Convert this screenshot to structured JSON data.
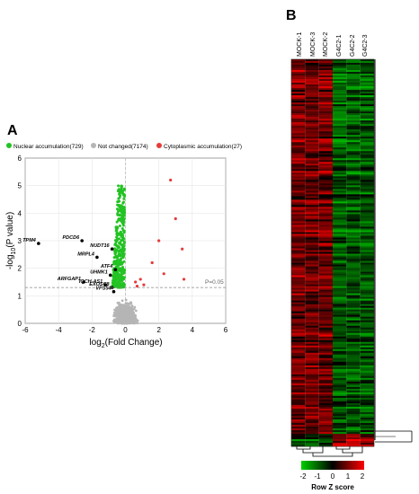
{
  "panelA": {
    "label": "A",
    "legend": [
      {
        "name": "Nuclear accumulation(729)",
        "color": "#22c322"
      },
      {
        "name": "Not changed(7174)",
        "color": "#b5b5b5"
      },
      {
        "name": "Cytoplasmic accumulation(27)",
        "color": "#e53b3b"
      }
    ],
    "xlabel_main": "log",
    "xlabel_sub": "2",
    "xlabel_rest": "(Fold Change)",
    "ylabel_main": "-log",
    "ylabel_sub": "10",
    "ylabel_rest": "(P value)",
    "threshold_label": "P=0.05"
  },
  "panelB": {
    "label": "B",
    "samples": [
      "MOCK-1",
      "MOCK-3",
      "MOCK-2",
      "G4C2-1",
      "G4C2-2",
      "G4C2-3"
    ],
    "colorbar_ticks": [
      "-2",
      "-1",
      "0",
      "1",
      "2"
    ],
    "colorbar_title": "Row Z score"
  },
  "chart_data": [
    {
      "type": "scatter",
      "title": "",
      "xlabel": "log2(Fold Change)",
      "ylabel": "-log10(P value)",
      "xlim": [
        -6,
        6
      ],
      "ylim": [
        0,
        6
      ],
      "xticks": [
        -6,
        -4,
        -2,
        0,
        2,
        4,
        6
      ],
      "yticks": [
        0,
        1,
        2,
        3,
        4,
        5,
        6
      ],
      "grid": true,
      "legend_position": "top",
      "threshold": {
        "y": 1.3,
        "label": "P=0.05"
      },
      "series": [
        {
          "name": "Nuclear accumulation(729)",
          "count": 729,
          "color": "#22c322"
        },
        {
          "name": "Not changed(7174)",
          "count": 7174,
          "color": "#b5b5b5"
        },
        {
          "name": "Cytoplasmic accumulation(27)",
          "count": 27,
          "color": "#e53b3b",
          "points": [
            [
              2.7,
              5.2
            ],
            [
              3.0,
              3.8
            ],
            [
              2.0,
              3.0
            ],
            [
              3.4,
              2.7
            ],
            [
              1.6,
              2.2
            ],
            [
              2.3,
              1.8
            ],
            [
              3.5,
              1.6
            ],
            [
              0.9,
              1.6
            ],
            [
              0.6,
              1.5
            ],
            [
              1.1,
              1.4
            ],
            [
              0.7,
              1.35
            ]
          ]
        }
      ],
      "labeled_points": [
        {
          "label": "TPM4",
          "x": -5.2,
          "y": 2.9
        },
        {
          "label": "PDCD6",
          "x": -2.6,
          "y": 3.0
        },
        {
          "label": "NUDT16",
          "x": -0.8,
          "y": 2.7
        },
        {
          "label": "MRPL4",
          "x": -1.7,
          "y": 2.4
        },
        {
          "label": "ATF4",
          "x": -0.6,
          "y": 1.95
        },
        {
          "label": "UHMK1",
          "x": -0.9,
          "y": 1.75
        },
        {
          "label": "ARFGAP1",
          "x": -2.5,
          "y": 1.5
        },
        {
          "label": "IQCH-AS1",
          "x": -1.2,
          "y": 1.4
        },
        {
          "label": "EXOSC8",
          "x": -0.8,
          "y": 1.3
        },
        {
          "label": "VPS54",
          "x": -0.7,
          "y": 1.15
        }
      ]
    },
    {
      "type": "heatmap",
      "columns": [
        "MOCK-1",
        "MOCK-3",
        "MOCK-2",
        "G4C2-1",
        "G4C2-2",
        "G4C2-3"
      ],
      "column_groups": [
        {
          "name": "MOCK",
          "columns": [
            "MOCK-1",
            "MOCK-3",
            "MOCK-2"
          ],
          "dominant": "red"
        },
        {
          "name": "G4C2",
          "columns": [
            "G4C2-1",
            "G4C2-2",
            "G4C2-3"
          ],
          "dominant": "green"
        }
      ],
      "colorscale": {
        "min": -2,
        "max": 2,
        "low": "#00c800",
        "mid": "#000000",
        "high": "#ff0000"
      },
      "colorbar_title": "Row Z score"
    }
  ]
}
